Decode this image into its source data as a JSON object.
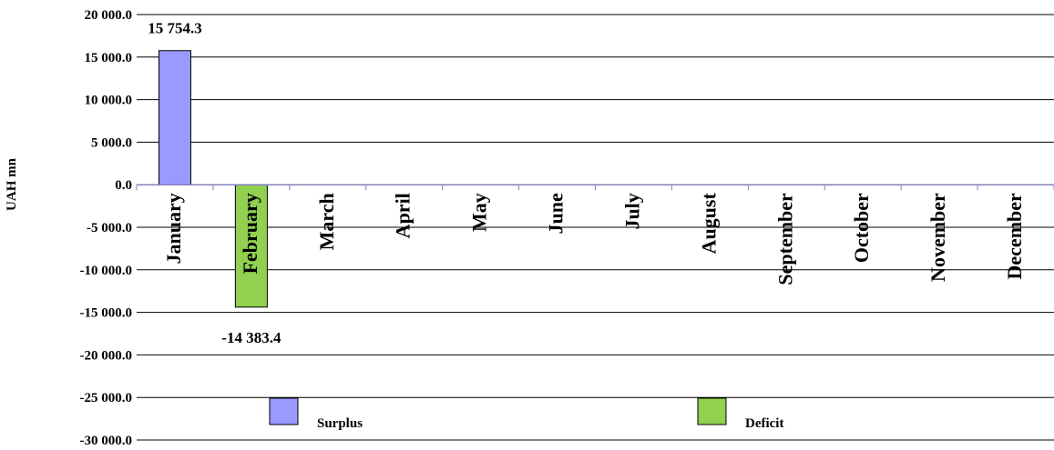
{
  "chart_data": {
    "type": "bar",
    "ylabel": "UAH mn",
    "ylim": [
      -30000,
      20000
    ],
    "ytick_step": 5000,
    "ytick_labels": [
      "20 000.0",
      "15 000.0",
      "10 000.0",
      "5 000.0",
      "0.0",
      "-5 000.0",
      "-10 000.0",
      "-15 000.0",
      "-20 000.0",
      "-25 000.0",
      "-30 000.0"
    ],
    "grid": true,
    "legend_position": "bottom",
    "categories": [
      "January",
      "February",
      "March",
      "April",
      "May",
      "June",
      "July",
      "August",
      "September",
      "October",
      "November",
      "December"
    ],
    "series": [
      {
        "name": "Surplus",
        "color": "#9999ff",
        "values": [
          15754.3,
          null,
          null,
          null,
          null,
          null,
          null,
          null,
          null,
          null,
          null,
          null
        ]
      },
      {
        "name": "Deficit",
        "color": "#92d050",
        "values": [
          null,
          -14383.4,
          null,
          null,
          null,
          null,
          null,
          null,
          null,
          null,
          null,
          null
        ]
      }
    ],
    "data_labels": [
      {
        "category": "January",
        "text": "15 754.3"
      },
      {
        "category": "February",
        "text": "-14 383.4"
      }
    ]
  }
}
